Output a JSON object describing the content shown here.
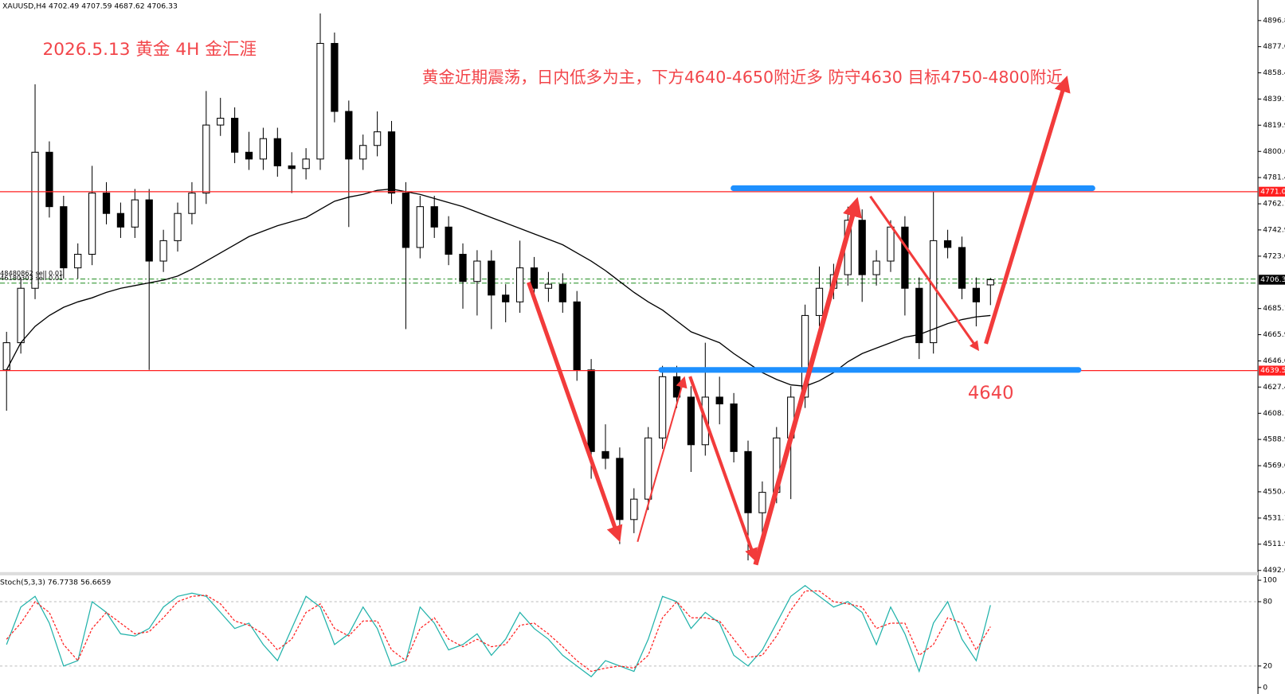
{
  "header": "XAUUSD,H4  4702.49 4707.59 4687.62 4706.33",
  "chart_data": [
    {
      "type": "candlestick",
      "title": "2026.5.13 黄金 4H 金汇涯",
      "annotation": "黄金近期震荡，日内低多为主，下方4640-4650附近多 防守4630 目标4750-4800附近",
      "level_label": "4640",
      "order_labels": [
        "48480862 sell 0.01",
        "46180303 sell 0.01"
      ],
      "up_color": "#ffffff",
      "down_color": "#000000",
      "ma_color": "#000000",
      "line_color": "#ff2020",
      "current_color": "#000000",
      "ylim": [
        4490.8,
        4908.9
      ],
      "yticks": [
        4896.8,
        4877.6,
        4858.4,
        4839.1,
        4819.9,
        4800.6,
        4781.4,
        4762.1,
        4742.9,
        4723.6,
        4685.1,
        4665.9,
        4646.6,
        4627.4,
        4608.1,
        4588.9,
        4569.6,
        4550.4,
        4531.1,
        4511.9,
        4492.6
      ],
      "hlines": [
        {
          "value": 4771.0,
          "label": "4771.0"
        },
        4639.5
      ],
      "current_price": 4706.3,
      "candles": [
        [
          4640,
          4668,
          4610,
          4660
        ],
        [
          4660,
          4708,
          4652,
          4700
        ],
        [
          4700,
          4850,
          4692,
          4800
        ],
        [
          4800,
          4808,
          4752,
          4760
        ],
        [
          4760,
          4768,
          4707,
          4715
        ],
        [
          4715,
          4733,
          4707,
          4725
        ],
        [
          4725,
          4790,
          4717,
          4770
        ],
        [
          4770,
          4778,
          4747,
          4755
        ],
        [
          4755,
          4763,
          4737,
          4745
        ],
        [
          4745,
          4773,
          4737,
          4765
        ],
        [
          4765,
          4773,
          4640,
          4720
        ],
        [
          4720,
          4743,
          4712,
          4735
        ],
        [
          4735,
          4763,
          4727,
          4755
        ],
        [
          4755,
          4778,
          4747,
          4770
        ],
        [
          4770,
          4845,
          4762,
          4820
        ],
        [
          4820,
          4840,
          4812,
          4825
        ],
        [
          4825,
          4833,
          4792,
          4800
        ],
        [
          4800,
          4815,
          4787,
          4795
        ],
        [
          4795,
          4818,
          4787,
          4810
        ],
        [
          4810,
          4818,
          4782,
          4790
        ],
        [
          4790,
          4800,
          4770,
          4788
        ],
        [
          4788,
          4803,
          4780,
          4795
        ],
        [
          4795,
          4902,
          4787,
          4880
        ],
        [
          4880,
          4888,
          4822,
          4830
        ],
        [
          4830,
          4838,
          4745,
          4795
        ],
        [
          4795,
          4813,
          4787,
          4805
        ],
        [
          4805,
          4830,
          4797,
          4815
        ],
        [
          4815,
          4823,
          4762,
          4770
        ],
        [
          4770,
          4778,
          4670,
          4730
        ],
        [
          4730,
          4768,
          4722,
          4760
        ],
        [
          4760,
          4768,
          4737,
          4745
        ],
        [
          4745,
          4753,
          4717,
          4725
        ],
        [
          4725,
          4733,
          4685,
          4705
        ],
        [
          4705,
          4728,
          4680,
          4720
        ],
        [
          4720,
          4728,
          4670,
          4695
        ],
        [
          4695,
          4703,
          4675,
          4690
        ],
        [
          4690,
          4735,
          4682,
          4715
        ],
        [
          4715,
          4723,
          4692,
          4700
        ],
        [
          4700,
          4712,
          4690,
          4703
        ],
        [
          4703,
          4711,
          4682,
          4690
        ],
        [
          4690,
          4698,
          4632,
          4640
        ],
        [
          4640,
          4648,
          4560,
          4580
        ],
        [
          4580,
          4600,
          4567,
          4575
        ],
        [
          4575,
          4583,
          4512,
          4530
        ],
        [
          4530,
          4553,
          4520,
          4545
        ],
        [
          4545,
          4598,
          4537,
          4590
        ],
        [
          4590,
          4643,
          4582,
          4635
        ],
        [
          4635,
          4643,
          4612,
          4620
        ],
        [
          4620,
          4628,
          4565,
          4585
        ],
        [
          4585,
          4660,
          4577,
          4620
        ],
        [
          4620,
          4635,
          4600,
          4615
        ],
        [
          4615,
          4623,
          4572,
          4580
        ],
        [
          4580,
          4588,
          4500,
          4535
        ],
        [
          4535,
          4558,
          4520,
          4550
        ],
        [
          4550,
          4598,
          4542,
          4590
        ],
        [
          4590,
          4628,
          4545,
          4620
        ],
        [
          4620,
          4688,
          4612,
          4680
        ],
        [
          4680,
          4716,
          4672,
          4700
        ],
        [
          4700,
          4718,
          4692,
          4710
        ],
        [
          4710,
          4760,
          4702,
          4750
        ],
        [
          4750,
          4758,
          4690,
          4710
        ],
        [
          4710,
          4728,
          4702,
          4720
        ],
        [
          4720,
          4750,
          4712,
          4745
        ],
        [
          4745,
          4753,
          4680,
          4700
        ],
        [
          4700,
          4708,
          4648,
          4660
        ],
        [
          4660,
          4771,
          4652,
          4735
        ],
        [
          4735,
          4743,
          4722,
          4730
        ],
        [
          4730,
          4738,
          4692,
          4700
        ],
        [
          4700,
          4708,
          4672,
          4690
        ],
        [
          4702.49,
          4707.59,
          4687.62,
          4706.33
        ]
      ],
      "ma": [
        4640,
        4660,
        4672,
        4680,
        4686,
        4690,
        4693,
        4697,
        4700,
        4702,
        4704,
        4706,
        4709,
        4714,
        4720,
        4726,
        4732,
        4738,
        4742,
        4746,
        4749,
        4752,
        4758,
        4764,
        4767,
        4769,
        4772,
        4773,
        4771,
        4769,
        4766,
        4763,
        4760,
        4756,
        4752,
        4748,
        4744,
        4740,
        4736,
        4732,
        4726,
        4720,
        4713,
        4705,
        4697,
        4690,
        4684,
        4676,
        4668,
        4664,
        4660,
        4652,
        4645,
        4638,
        4633,
        4629,
        4628,
        4632,
        4638,
        4646,
        4652,
        4656,
        4660,
        4664,
        4666,
        4670,
        4674,
        4677,
        4679,
        4680
      ]
    },
    {
      "type": "line",
      "title": "Stoch(5,3,3) 76.7738 56.6659",
      "ylim": [
        0,
        100
      ],
      "yticks": [
        100,
        80,
        20,
        0
      ],
      "series": [
        {
          "color": "#20b2aa",
          "values": [
            40,
            75,
            85,
            60,
            20,
            25,
            80,
            70,
            50,
            48,
            55,
            75,
            85,
            88,
            85,
            70,
            55,
            60,
            40,
            25,
            55,
            85,
            75,
            40,
            50,
            75,
            55,
            20,
            25,
            75,
            60,
            35,
            40,
            50,
            30,
            45,
            70,
            55,
            45,
            30,
            20,
            10,
            25,
            20,
            15,
            45,
            85,
            80,
            55,
            70,
            60,
            30,
            20,
            35,
            60,
            85,
            95,
            85,
            75,
            80,
            70,
            40,
            75,
            50,
            15,
            60,
            80,
            45,
            25,
            76.7738
          ]
        },
        {
          "color": "#ff2020",
          "dashed": true,
          "values": [
            45,
            60,
            80,
            70,
            40,
            25,
            55,
            70,
            60,
            50,
            52,
            65,
            80,
            85,
            86,
            78,
            62,
            58,
            50,
            35,
            45,
            70,
            78,
            55,
            48,
            62,
            62,
            35,
            25,
            55,
            65,
            45,
            38,
            45,
            38,
            40,
            58,
            60,
            50,
            38,
            25,
            15,
            18,
            20,
            18,
            30,
            65,
            80,
            65,
            65,
            62,
            45,
            28,
            30,
            48,
            72,
            90,
            90,
            80,
            78,
            75,
            55,
            60,
            60,
            30,
            40,
            65,
            60,
            35,
            56.6659
          ]
        }
      ]
    }
  ]
}
